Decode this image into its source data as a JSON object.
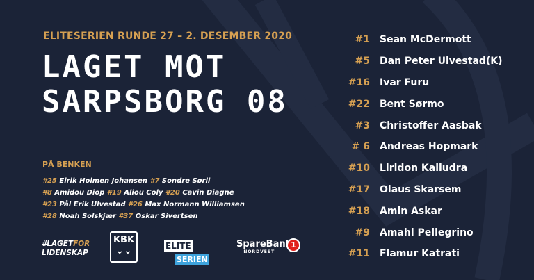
{
  "header": {
    "subtitle": "ELITESERIEN RUNDE 27 – 2. DESEMBER 2020",
    "title_line1": "LAGET MOT",
    "title_line2": "SARPSBORG 08"
  },
  "bench": {
    "heading": "PÅ BENKEN",
    "lines": [
      [
        {
          "n": "#25",
          "name": "Eirik Holmen Johansen"
        },
        {
          "n": "#7",
          "name": "Sondre Sørli"
        }
      ],
      [
        {
          "n": "#8",
          "name": "Amidou Diop"
        },
        {
          "n": "#19",
          "name": "Aliou Coly"
        },
        {
          "n": "#20",
          "name": "Cavin Diagne"
        }
      ],
      [
        {
          "n": "#23",
          "name": "Pål Erik Ulvestad"
        },
        {
          "n": "#26",
          "name": "Max Normann Williamsen"
        }
      ],
      [
        {
          "n": "#28",
          "name": "Noah Solskjær"
        },
        {
          "n": "#37",
          "name": "Oskar Sivertsen"
        }
      ]
    ]
  },
  "lineup": [
    {
      "n": "#1",
      "name": "Sean McDermott"
    },
    {
      "n": "#5",
      "name": "Dan Peter Ulvestad(K)"
    },
    {
      "n": "#16",
      "name": "Ivar Furu"
    },
    {
      "n": "#22",
      "name": "Bent Sørmo"
    },
    {
      "n": "#3",
      "name": "Christoffer Aasbak"
    },
    {
      "n": "# 6",
      "name": "Andreas Hopmark"
    },
    {
      "n": "#10",
      "name": "Liridon Kalludra"
    },
    {
      "n": "#17",
      "name": "Olaus Skarsem"
    },
    {
      "n": "#18",
      "name": "Amin Askar"
    },
    {
      "n": "#9",
      "name": "Amahl Pellegrino"
    },
    {
      "n": "#11",
      "name": "Flamur Katrati"
    }
  ],
  "footer": {
    "tag_a": "#LAGET",
    "tag_b": "FOR",
    "tag_c": "LIDENSKAP",
    "kbk": "KBK",
    "elite_a": "ELITE",
    "elite_b": "SERIEN",
    "sponsor": "SpareBank",
    "sponsor_sub": "NORDVEST",
    "sponsor_num": "1"
  },
  "colors": {
    "background": "#1b2337",
    "accent": "#d6a052"
  }
}
